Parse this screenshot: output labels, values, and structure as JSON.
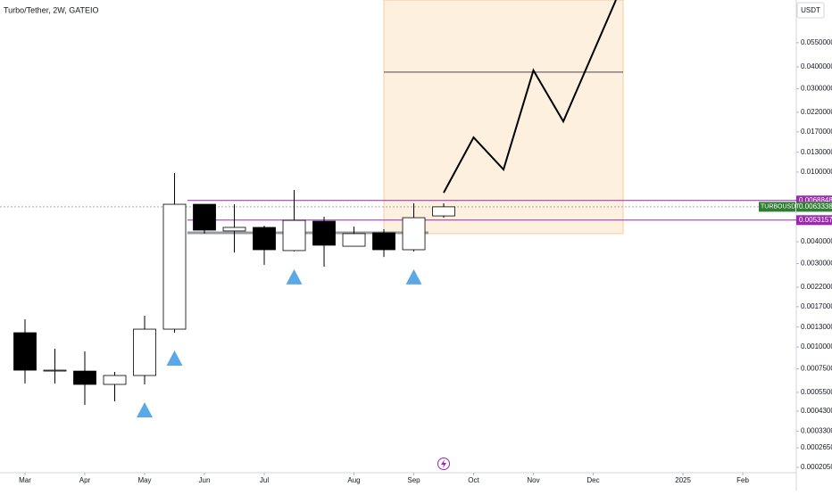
{
  "chart_data": {
    "type": "candlestick",
    "title": "Turbo/Tether, 2W, GATEIO",
    "currency": "USDT",
    "symbol": "TURBOUSDT",
    "log_scale": true,
    "xlim": [
      -0.836,
      25.79
    ],
    "ylim": [
      0.000191,
      0.0965
    ],
    "xticks": [
      {
        "value": 0,
        "label": "Mar"
      },
      {
        "value": 2,
        "label": "Apr"
      },
      {
        "value": 4,
        "label": "May"
      },
      {
        "value": 6,
        "label": "Jun"
      },
      {
        "value": 8,
        "label": "Jul"
      },
      {
        "value": 11,
        "label": "Aug"
      },
      {
        "value": 13,
        "label": "Sep"
      },
      {
        "value": 15,
        "label": "Oct"
      },
      {
        "value": 17,
        "label": "Nov"
      },
      {
        "value": 19,
        "label": "Dec"
      },
      {
        "value": 22,
        "label": "2025"
      },
      {
        "value": 24,
        "label": "Feb"
      }
    ],
    "yticks": [
      {
        "value": 0.055,
        "label": "0.0550000"
      },
      {
        "value": 0.04,
        "label": "0.0400000"
      },
      {
        "value": 0.03,
        "label": "0.0300000"
      },
      {
        "value": 0.022,
        "label": "0.0220000"
      },
      {
        "value": 0.017,
        "label": "0.0170000"
      },
      {
        "value": 0.013,
        "label": "0.0130000"
      },
      {
        "value": 0.01,
        "label": "0.0100000"
      },
      {
        "value": 0.004,
        "label": "0.0040000"
      },
      {
        "value": 0.003,
        "label": "0.0030000"
      },
      {
        "value": 0.0022,
        "label": "0.0022000"
      },
      {
        "value": 0.0017,
        "label": "0.0017000"
      },
      {
        "value": 0.0013,
        "label": "0.0013000"
      },
      {
        "value": 0.001,
        "label": "0.0010000"
      },
      {
        "value": 0.00075,
        "label": "0.0007500"
      },
      {
        "value": 0.00055,
        "label": "0.0005500"
      },
      {
        "value": 0.00043,
        "label": "0.0004300"
      },
      {
        "value": 0.00033,
        "label": "0.0003300"
      },
      {
        "value": 0.000265,
        "label": "0.0002650"
      },
      {
        "value": 0.000205,
        "label": "0.0002050"
      }
    ],
    "candles": {
      "x": [
        0,
        1,
        2,
        3,
        4,
        5,
        6,
        7,
        8,
        9,
        10,
        11,
        12,
        13,
        14
      ],
      "open": [
        0.001207,
        0.000737,
        0.000728,
        0.000611,
        0.000687,
        0.001265,
        0.00655,
        0.00461,
        0.00483,
        0.00356,
        0.00524,
        0.00377,
        0.0045,
        0.0036,
        0.00562
      ],
      "high": [
        0.001439,
        0.000977,
        0.000943,
        0.00072,
        0.001509,
        0.00988,
        0.00655,
        0.00655,
        0.00494,
        0.00791,
        0.00556,
        0.00488,
        0.00472,
        0.00663,
        0.00663
      ],
      "low": [
        0.000618,
        0.000618,
        0.000466,
        0.000489,
        0.000611,
        0.001207,
        0.00445,
        0.00347,
        0.00295,
        0.00352,
        0.00288,
        0.00377,
        0.00327,
        0.00352,
        0.00549
      ],
      "close": [
        0.000737,
        0.000737,
        0.000611,
        0.000687,
        0.001265,
        0.00655,
        0.00466,
        0.00483,
        0.0036,
        0.0053,
        0.00382,
        0.00445,
        0.0036,
        0.00549,
        0.0063338
      ]
    },
    "signals": [
      4,
      5,
      9,
      13
    ],
    "signal_color": "#5aa9e6",
    "price_lines": [
      {
        "value": 0.0068848,
        "color": "#9c27b0"
      },
      {
        "value": 0.0063338,
        "color": "#2e7d32"
      },
      {
        "value": 0.0053157,
        "color": "#9c27b0"
      }
    ],
    "projection": {
      "x": [
        14,
        15,
        16,
        17,
        18,
        19.76
      ],
      "values": [
        0.00763,
        0.0158,
        0.01036,
        0.0382,
        0.0195,
        0.0965
      ],
      "box_x": [
        12,
        20
      ],
      "box_y": [
        0.00445,
        0.0965
      ],
      "box_level": 0.0373
    }
  }
}
